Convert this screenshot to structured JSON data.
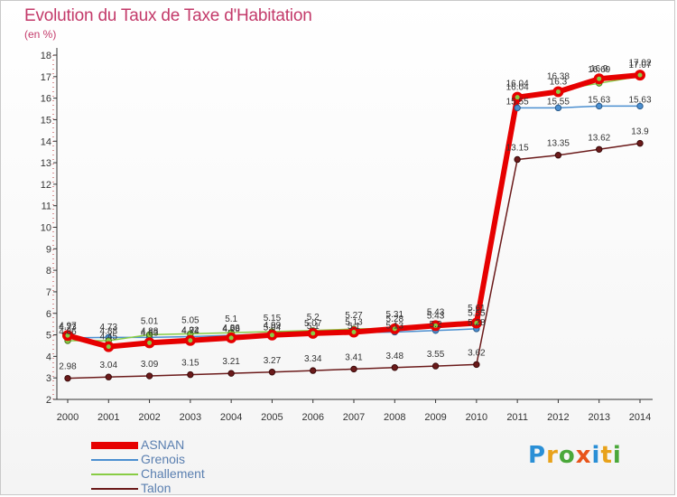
{
  "title": "Evolution du Taux de Taxe d'Habitation",
  "subtitle": "(en %)",
  "logo": {
    "text": "Proxiti",
    "colors": [
      "#2a8fd6",
      "#e8a21a",
      "#4aa83a",
      "#e8541a",
      "#2a8fd6",
      "#e8a21a",
      "#4aa83a"
    ]
  },
  "chart_data": {
    "type": "line",
    "x": [
      "2000",
      "2001",
      "2002",
      "2003",
      "2004",
      "2005",
      "2006",
      "2007",
      "2008",
      "2009",
      "2010",
      "2011",
      "2012",
      "2013",
      "2014"
    ],
    "ylim": [
      2,
      18
    ],
    "yticks": [
      2,
      3,
      4,
      5,
      6,
      7,
      8,
      9,
      10,
      11,
      12,
      13,
      14,
      15,
      16,
      17,
      18
    ],
    "grid": false,
    "legend_position": "bottom-left",
    "series": [
      {
        "name": "ASNAN",
        "color": "#e60000",
        "values": [
          4.97,
          4.45,
          4.63,
          4.74,
          4.86,
          4.99,
          5.07,
          5.13,
          5.28,
          5.43,
          5.55,
          16.04,
          16.3,
          16.9,
          17.07
        ],
        "labels": [
          "4.97",
          "4.45",
          "4.63",
          "4.74",
          "4.86",
          "4.99",
          "5.07",
          "5.13",
          "5.28",
          "5.43",
          "5.55",
          "16.04",
          "16.3",
          "16.9",
          "17.07"
        ]
      },
      {
        "name": "Grenois",
        "color": "#4b8fd0",
        "values": [
          4.86,
          4.88,
          4.88,
          4.92,
          4.98,
          5.04,
          5.1,
          5.1,
          5.13,
          5.2,
          5.28,
          15.55,
          15.55,
          15.63,
          15.63
        ],
        "labels": [
          "4.86",
          "4.88",
          "4.88",
          "4.92",
          "4.98",
          "5.04",
          "5.1",
          "5.1",
          "5.13",
          "5.2",
          "5.28",
          "15.55",
          "15.55",
          "15.63",
          "15.63"
        ]
      },
      {
        "name": "Challement",
        "color": "#88cc44",
        "values": [
          4.73,
          4.73,
          5.01,
          5.05,
          5.1,
          5.15,
          5.2,
          5.27,
          5.31,
          5.43,
          5.61,
          16.04,
          16.38,
          16.69,
          17.02
        ],
        "labels": [
          "4.73",
          "4.73",
          "5.01",
          "5.05",
          "5.1",
          "5.15",
          "5.2",
          "5.27",
          "5.31",
          "5.43",
          "5.61",
          "16.04",
          "16.38",
          "16.69",
          "17.02"
        ]
      },
      {
        "name": "Talon",
        "color": "#6b1a1a",
        "values": [
          2.98,
          3.04,
          3.09,
          3.15,
          3.21,
          3.27,
          3.34,
          3.41,
          3.48,
          3.55,
          3.62,
          13.15,
          13.35,
          13.62,
          13.9
        ],
        "labels": [
          "2.98",
          "3.04",
          "3.09",
          "3.15",
          "3.21",
          "3.27",
          "3.34",
          "3.41",
          "3.48",
          "3.55",
          "3.62",
          "13.15",
          "13.35",
          "13.62",
          "13.9"
        ]
      }
    ]
  }
}
